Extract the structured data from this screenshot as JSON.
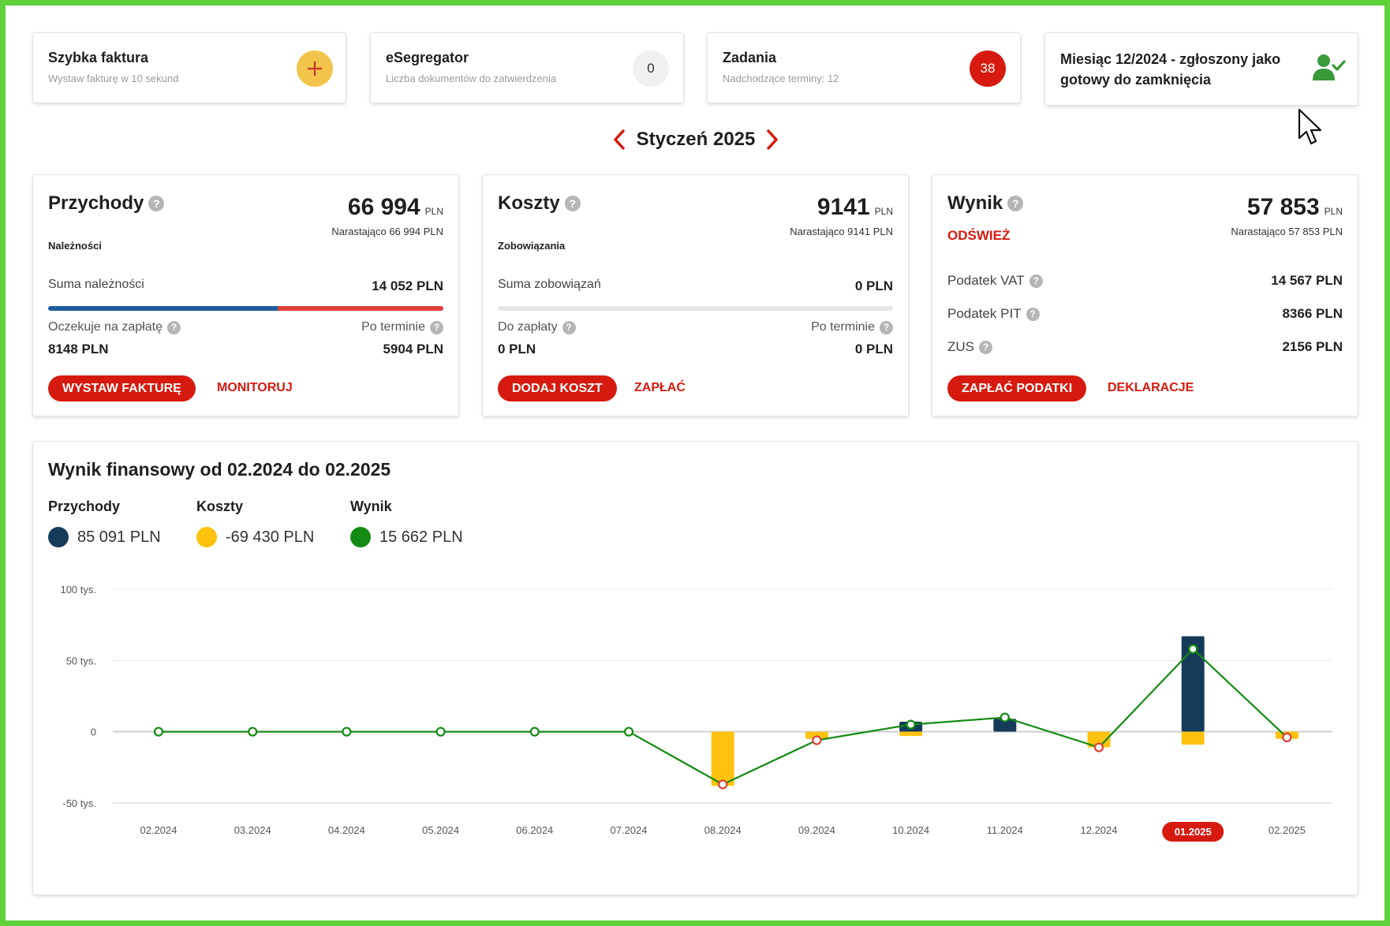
{
  "tiles": [
    {
      "title": "Szybka faktura",
      "subtitle": "Wystaw fakturę w 10 sekund",
      "icon": "plus-icon"
    },
    {
      "title": "eSegregator",
      "subtitle": "Liczba dokumentów do zatwierdzenia",
      "badge": "0"
    },
    {
      "title": "Zadania",
      "subtitle": "Nadchodzące terminy: 12",
      "badge": "38"
    },
    {
      "title": "Miesiąc 12/2024 - zgłoszony jako gotowy do zamknięcia",
      "icon": "user-check-icon"
    }
  ],
  "month_nav": {
    "label": "Styczeń 2025",
    "prev_icon": "chevron-left-icon",
    "next_icon": "chevron-right-icon"
  },
  "przychody": {
    "title": "Przychody",
    "amount": "66 994",
    "unit": "PLN",
    "cumulative": "Narastająco 66 994 PLN",
    "section": "Należności",
    "sum_label": "Suma należności",
    "sum_value": "14 052 PLN",
    "waiting_label": "Oczekuje na zapłatę",
    "waiting_value": "8148 PLN",
    "overdue_label": "Po terminie",
    "overdue_value": "5904 PLN",
    "primary_button": "WYSTAW FAKTURĘ",
    "link_button": "MONITORUJ",
    "progress_fraction": 0.58
  },
  "koszty": {
    "title": "Koszty",
    "amount": "9141",
    "unit": "PLN",
    "cumulative": "Narastająco 9141 PLN",
    "section": "Zobowiązania",
    "sum_label": "Suma zobowiązań",
    "sum_value": "0 PLN",
    "waiting_label": "Do zapłaty",
    "waiting_value": "0 PLN",
    "overdue_label": "Po terminie",
    "overdue_value": "0 PLN",
    "primary_button": "DODAJ KOSZT",
    "link_button": "ZAPŁAĆ",
    "progress_fraction": 0
  },
  "wynik": {
    "title": "Wynik",
    "amount": "57 853",
    "unit": "PLN",
    "cumulative": "Narastająco 57 853 PLN",
    "refresh": "ODŚWIEŻ",
    "rows": [
      {
        "label": "Podatek VAT",
        "value": "14 567 PLN"
      },
      {
        "label": "Podatek PIT",
        "value": "8366 PLN"
      },
      {
        "label": "ZUS",
        "value": "2156 PLN"
      }
    ],
    "primary_button": "ZAPŁAĆ PODATKI",
    "link_button": "DEKLARACJE"
  },
  "chart_section": {
    "title": "Wynik finansowy od 02.2024 do 02.2025",
    "legend": [
      {
        "name": "Przychody",
        "value": "85 091 PLN",
        "color": "#163a5a"
      },
      {
        "name": "Koszty",
        "value": "-69 430 PLN",
        "color": "#ffc20e"
      },
      {
        "name": "Wynik",
        "value": "15 662 PLN",
        "color": "#138a13"
      }
    ]
  },
  "chart_data": {
    "type": "bar",
    "categories": [
      "02.2024",
      "03.2024",
      "04.2024",
      "05.2024",
      "06.2024",
      "07.2024",
      "08.2024",
      "09.2024",
      "10.2024",
      "11.2024",
      "12.2024",
      "01.2025",
      "02.2025"
    ],
    "series": [
      {
        "name": "Przychody",
        "type": "bar",
        "values": [
          0,
          0,
          0,
          0,
          0,
          0,
          0,
          0,
          7000,
          9000,
          0,
          66994,
          0
        ]
      },
      {
        "name": "Koszty",
        "type": "bar",
        "values": [
          0,
          0,
          0,
          0,
          0,
          0,
          -38000,
          -5000,
          -3000,
          0,
          -11000,
          -9141,
          -5000
        ]
      },
      {
        "name": "Wynik",
        "type": "line",
        "values": [
          0,
          0,
          0,
          0,
          0,
          0,
          -37000,
          -6000,
          5000,
          10000,
          -11000,
          58000,
          -4000
        ]
      }
    ],
    "y_ticks": [
      "100 tys.",
      "50 tys.",
      "0",
      "-50 tys."
    ],
    "y_tick_values": [
      100000,
      50000,
      0,
      -50000
    ],
    "ylim": [
      -50000,
      100000
    ],
    "highlighted_category": "01.2025",
    "colors": {
      "revenue": "#163a5a",
      "costs": "#ffc20e",
      "result_line": "#138a13",
      "negative_marker": "#e0403a",
      "highlight": "#d71a0f"
    },
    "grid": true
  }
}
